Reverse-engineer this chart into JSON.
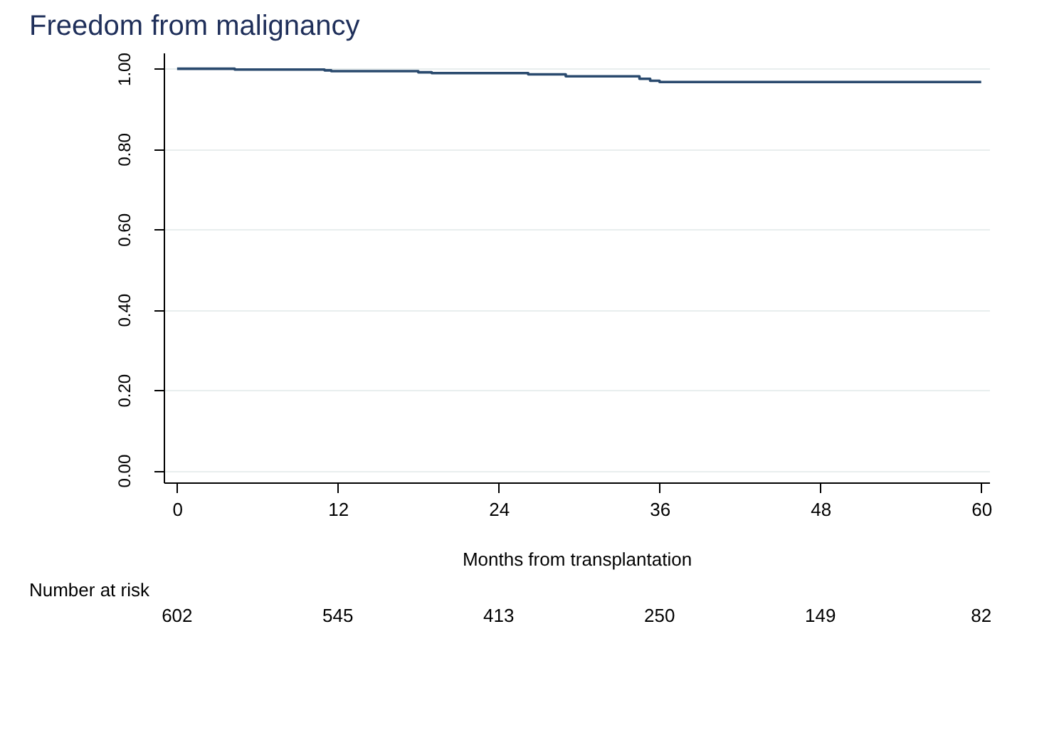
{
  "chart_data": {
    "type": "step",
    "title": "Freedom from malignancy",
    "xlabel": "Months from transplantation",
    "x": [
      0,
      4.3,
      11,
      11.5,
      18,
      19,
      26.2,
      29,
      34.5,
      35.3,
      36,
      60
    ],
    "series": [
      {
        "color": "#2a4a6e",
        "values": [
          1.0,
          0.998,
          0.996,
          0.994,
          0.991,
          0.989,
          0.986,
          0.981,
          0.975,
          0.97,
          0.967,
          0.967
        ]
      }
    ],
    "xlim": [
      -1,
      60.6
    ],
    "xticks": [
      0,
      12,
      24,
      36,
      48,
      60
    ],
    "ylim": [
      -0.03,
      1.04
    ],
    "yticks": [
      {
        "value": 0,
        "label": "0.00"
      },
      {
        "value": 0.2,
        "label": "0.20"
      },
      {
        "value": 0.4,
        "label": "0.40"
      },
      {
        "value": 0.6,
        "label": "0.60"
      },
      {
        "value": 0.8,
        "label": "0.80"
      },
      {
        "value": 1.0,
        "label": "1.00"
      }
    ],
    "grid": "y",
    "marker": "none",
    "line_style": "solid",
    "annotations": [
      "Number at risk",
      "602",
      "545",
      "413",
      "250",
      "149",
      "82"
    ]
  }
}
